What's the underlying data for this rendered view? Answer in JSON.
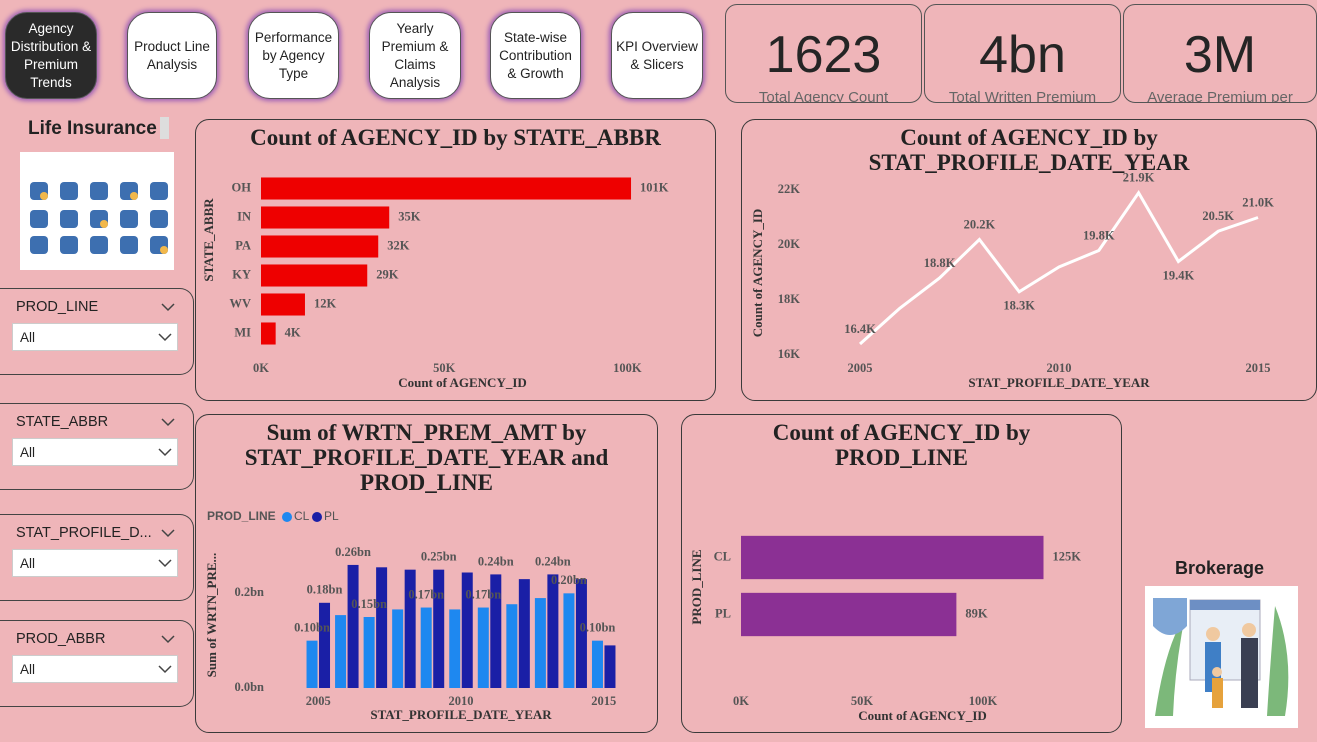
{
  "nav": [
    "Agency Distribution & Premium Trends",
    "Product Line Analysis",
    "Performance by Agency Type",
    "Yearly Premium & Claims Analysis",
    "State-wise Contribution & Growth",
    "KPI Overview & Slicers"
  ],
  "kpis": [
    {
      "value": "1623",
      "label": "Total Agency Count"
    },
    {
      "value": "4bn",
      "label": "Total Written Premium"
    },
    {
      "value": "3M",
      "label": "Average Premium per"
    }
  ],
  "sidebar_title": "Life Insurance",
  "slicers": [
    {
      "label": "PROD_LINE",
      "value": "All"
    },
    {
      "label": "STATE_ABBR",
      "value": "All"
    },
    {
      "label": "STAT_PROFILE_D...",
      "value": "All"
    },
    {
      "label": "PROD_ABBR",
      "value": "All"
    }
  ],
  "brokerage_label": "Brokerage",
  "chart_data": [
    {
      "type": "bar",
      "orientation": "horizontal",
      "title": "Count of AGENCY_ID by STATE_ABBR",
      "categories": [
        "OH",
        "IN",
        "PA",
        "KY",
        "WV",
        "MI"
      ],
      "values": [
        101000,
        35000,
        32000,
        29000,
        12000,
        4000
      ],
      "value_labels": [
        "101K",
        "35K",
        "32K",
        "29K",
        "12K",
        "4K"
      ],
      "color": "#ee0000",
      "xlim": [
        0,
        110000
      ],
      "xticks": [
        {
          "value": 0,
          "label": "0K"
        },
        {
          "value": 50000,
          "label": "50K"
        },
        {
          "value": 100000,
          "label": "100K"
        }
      ],
      "x_label": "Count of AGENCY_ID",
      "y_label": "STATE_ABBR",
      "grid": false
    },
    {
      "type": "line",
      "title": "Count of AGENCY_ID by STAT_PROFILE_DATE_YEAR",
      "x": [
        2005,
        2006,
        2007,
        2008,
        2009,
        2010,
        2011,
        2012,
        2013,
        2014,
        2015
      ],
      "values": [
        16400,
        17700,
        18800,
        20200,
        18300,
        19200,
        19800,
        21900,
        19400,
        20500,
        21000
      ],
      "value_labels": [
        "16.4K",
        null,
        "18.8K",
        "20.2K",
        "18.3K",
        null,
        "19.8K",
        "21.9K",
        "19.4K",
        "20.5K",
        "21.0K"
      ],
      "color": "#ffffff",
      "xlim": [
        2005,
        2015
      ],
      "xticks": [
        2005,
        2010,
        2015
      ],
      "ylim": [
        16000,
        22000
      ],
      "yticks": [
        {
          "value": 16000,
          "label": "16K"
        },
        {
          "value": 18000,
          "label": "18K"
        },
        {
          "value": 20000,
          "label": "20K"
        },
        {
          "value": 22000,
          "label": "22K"
        }
      ],
      "x_label": "STAT_PROFILE_DATE_YEAR",
      "y_label": "Count of AGENCY_ID",
      "grid": false
    },
    {
      "type": "bar",
      "orientation": "vertical",
      "title": "Sum of WRTN_PREM_AMT by STAT_PROFILE_DATE_YEAR and PROD_LINE",
      "x": [
        2005,
        2006,
        2007,
        2008,
        2009,
        2010,
        2011,
        2012,
        2013,
        2014,
        2015
      ],
      "legend_title": "PROD_LINE",
      "series": [
        {
          "name": "CL",
          "color": "#1e88f0",
          "values": [
            100000000,
            154000000,
            150000000,
            166000000,
            170000000,
            166000000,
            170000000,
            177000000,
            190000000,
            200000000,
            100000000
          ],
          "value_labels": [
            "0.10bn",
            null,
            "0.15bn",
            null,
            "0.17bn",
            null,
            "0.17bn",
            null,
            null,
            "0.20bn",
            "0.10bn"
          ]
        },
        {
          "name": "PL",
          "color": "#1a1fa6",
          "values": [
            180000000,
            260000000,
            255000000,
            250000000,
            250000000,
            244000000,
            240000000,
            230000000,
            240000000,
            230000000,
            90000000
          ],
          "value_labels": [
            "0.18bn",
            "0.26bn",
            null,
            null,
            "0.25bn",
            null,
            "0.24bn",
            null,
            "0.24bn",
            null,
            null
          ]
        }
      ],
      "xlim": [
        2004.5,
        2015.5
      ],
      "xticks": [
        2005,
        2010,
        2015
      ],
      "ylim": [
        0,
        300000000
      ],
      "yticks": [
        {
          "value": 0,
          "label": "0.0bn"
        },
        {
          "value": 200000000,
          "label": "0.2bn"
        }
      ],
      "x_label": "STAT_PROFILE_DATE_YEAR",
      "y_label": "Sum of WRTN_PRE...",
      "grid": false
    },
    {
      "type": "bar",
      "orientation": "horizontal",
      "title": "Count of AGENCY_ID by PROD_LINE",
      "categories": [
        "CL",
        "PL"
      ],
      "values": [
        125000,
        89000
      ],
      "value_labels": [
        "125K",
        "89K"
      ],
      "color": "#8b3094",
      "xlim": [
        0,
        150000
      ],
      "xticks": [
        {
          "value": 0,
          "label": "0K"
        },
        {
          "value": 50000,
          "label": "50K"
        },
        {
          "value": 100000,
          "label": "100K"
        }
      ],
      "x_label": "Count of AGENCY_ID",
      "y_label": "PROD_LINE",
      "grid": false
    }
  ]
}
